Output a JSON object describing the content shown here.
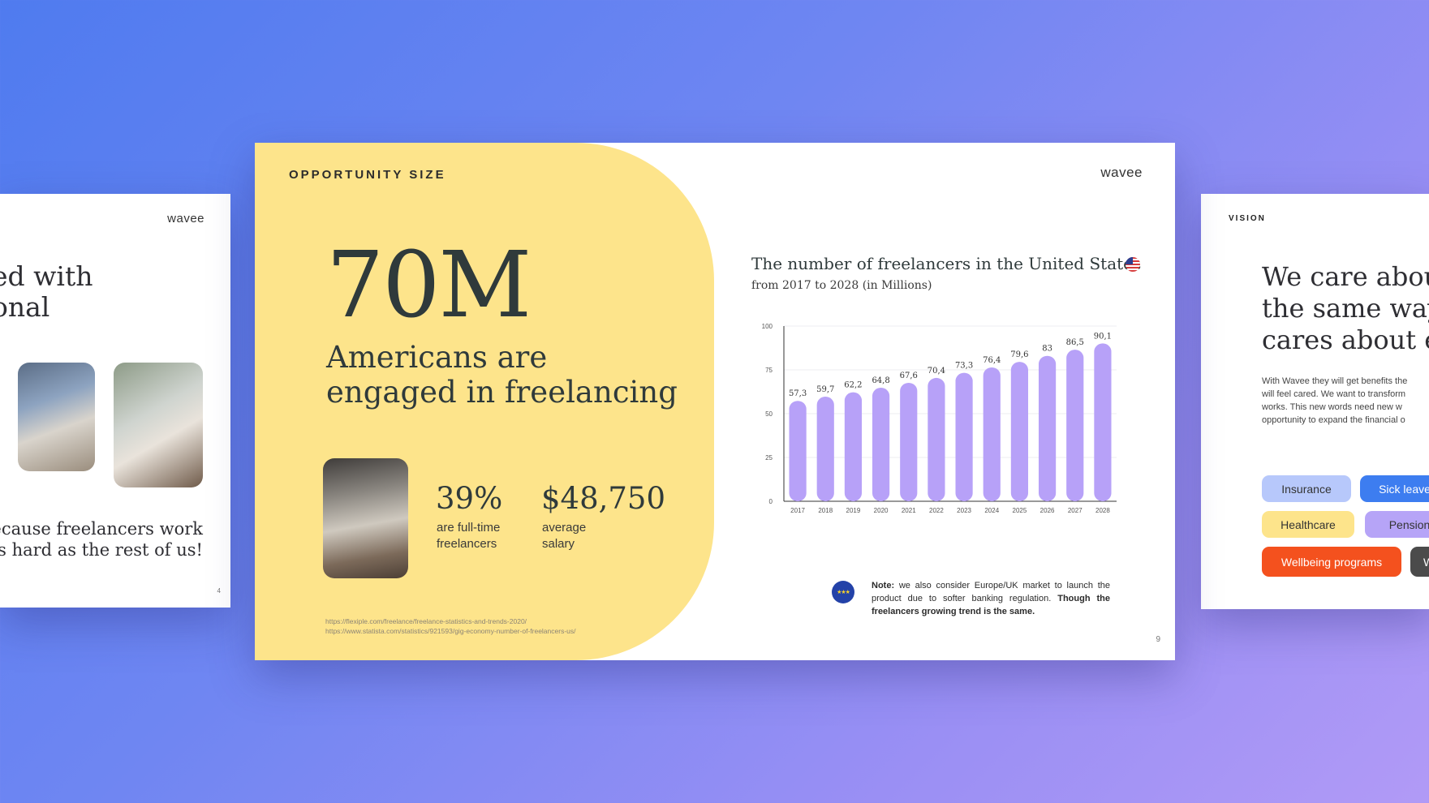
{
  "left_slide": {
    "logo": "wavee",
    "heading_line1": "ed with",
    "heading_line2": "onal",
    "tagline_line1": "Because freelancers work",
    "tagline_line2": "as hard as the rest of us!",
    "page_number": "4"
  },
  "main_slide": {
    "section_label": "OPPORTUNITY SIZE",
    "logo": "wavee",
    "big_number": "70M",
    "big_caption": "Americans are engaged in freelancing",
    "stat1": {
      "value": "39%",
      "label_line1": "are full-time",
      "label_line2": "freelancers"
    },
    "stat2": {
      "value": "$48,750",
      "label_line1": "average",
      "label_line2": "salary"
    },
    "source1": "https://flexiple.com/freelance/freelance-statistics-and-trends-2020/",
    "source2": "https://www.statista.com/statistics/921593/gig-economy-number-of-freelancers-us/",
    "note_label": "Note:",
    "note_text": "we also consider Europe/UK market to launch the product due to softer banking regulation.",
    "note_bold": "Though the freelancers growing trend is the same.",
    "page_number": "9",
    "us_flag_icon": "us-flag-icon",
    "eu_flag_icon": "eu-flag-icon"
  },
  "right_slide": {
    "section_label": "VISION",
    "heading_line1": "We care abou",
    "heading_line2": "the same way",
    "heading_line3": "cares about e",
    "body_line1": "With Wavee they will get benefits the",
    "body_line2": "will feel cared. We want to transform",
    "body_line3": "works. This new words need new w",
    "body_line4": "opportunity to expand the financial o",
    "pills": [
      {
        "label": "Insurance",
        "bg": "#b7c8fb",
        "fg": "#333"
      },
      {
        "label": "Sick leave",
        "bg": "#3d7df0",
        "fg": "#ffffff"
      },
      {
        "label": "Healthcare",
        "bg": "#fde48b",
        "fg": "#333"
      },
      {
        "label": "Pension",
        "bg": "#b6a4f7",
        "fg": "#333"
      },
      {
        "label": "Wellbeing programs",
        "bg": "#f4511e",
        "fg": "#ffffff"
      },
      {
        "label": "W",
        "bg": "#4b4b4b",
        "fg": "#ffffff"
      }
    ]
  },
  "chart_data": {
    "type": "bar",
    "title": "The number of freelancers in the United States",
    "subtitle": "from 2017 to 2028 (in Millions)",
    "categories": [
      "2017",
      "2018",
      "2019",
      "2020",
      "2021",
      "2022",
      "2023",
      "2024",
      "2025",
      "2026",
      "2027",
      "2028"
    ],
    "values": [
      57.3,
      59.7,
      62.2,
      64.8,
      67.6,
      70.4,
      73.3,
      76.4,
      79.6,
      83,
      86.5,
      90.1
    ],
    "value_labels": [
      "57,3",
      "59,7",
      "62,2",
      "64,8",
      "67,6",
      "70,4",
      "73,3",
      "76,4",
      "79,6",
      "83",
      "86,5",
      "90,1"
    ],
    "yticks": [
      0,
      25,
      50,
      75,
      100
    ],
    "ylim": [
      0,
      100
    ],
    "bar_color": "#b7a1f8",
    "grid": true,
    "xlabel": "",
    "ylabel": ""
  },
  "colors": {
    "yellow": "#fde48b",
    "purple": "#b7a1f8",
    "text_dark": "#2f3a3b"
  }
}
